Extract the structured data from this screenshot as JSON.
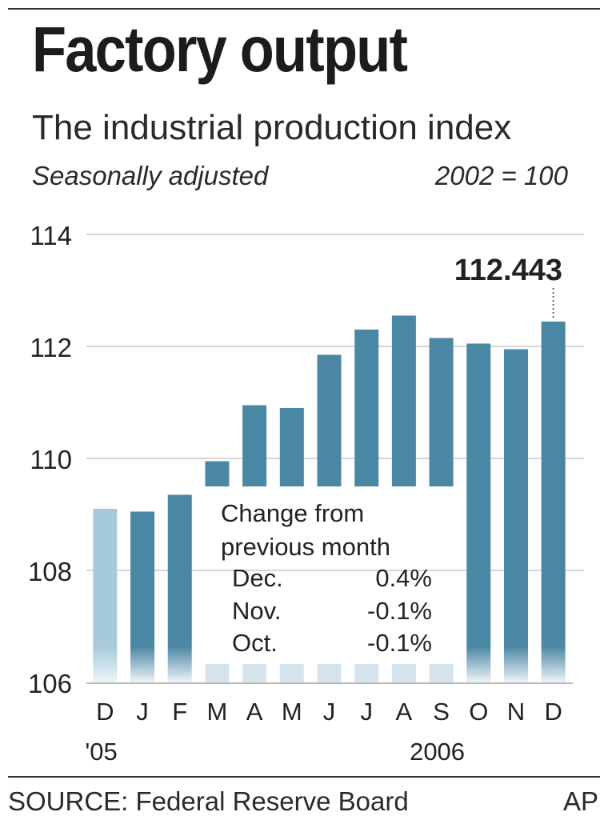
{
  "header": {
    "title": "Factory output",
    "subtitle": "The industrial production index",
    "note_left": "Seasonally adjusted",
    "note_right": "2002 = 100"
  },
  "inset": {
    "title": "Change from previous month",
    "rows": [
      {
        "month": "Dec.",
        "value": "0.4%"
      },
      {
        "month": "Nov.",
        "value": "-0.1%"
      },
      {
        "month": "Oct.",
        "value": "-0.1%"
      }
    ]
  },
  "footer": {
    "source": "SOURCE: Federal Reserve Board",
    "credit": "AP"
  },
  "chart_data": {
    "type": "bar",
    "title": "Factory output",
    "subtitle": "The industrial production index",
    "xlabel": "",
    "ylabel": "",
    "ylim": [
      106,
      114
    ],
    "yticks": [
      106,
      108,
      110,
      112,
      114
    ],
    "grid": true,
    "categories": [
      "D",
      "J",
      "F",
      "M",
      "A",
      "M",
      "J",
      "J",
      "A",
      "S",
      "O",
      "N",
      "D"
    ],
    "year_labels": [
      {
        "index": 0,
        "text": "'05"
      },
      {
        "index": 9,
        "text": "2006"
      }
    ],
    "values": [
      109.1,
      109.05,
      109.35,
      109.95,
      110.95,
      110.9,
      111.85,
      112.3,
      112.55,
      112.15,
      112.05,
      111.95,
      112.443
    ],
    "highlight": {
      "index": 12,
      "label": "112.443"
    },
    "colors": {
      "bar": "#4a87a4",
      "bar_first": "#a7cadb",
      "grid": "#d6d6d6",
      "axis": "#333333"
    }
  }
}
